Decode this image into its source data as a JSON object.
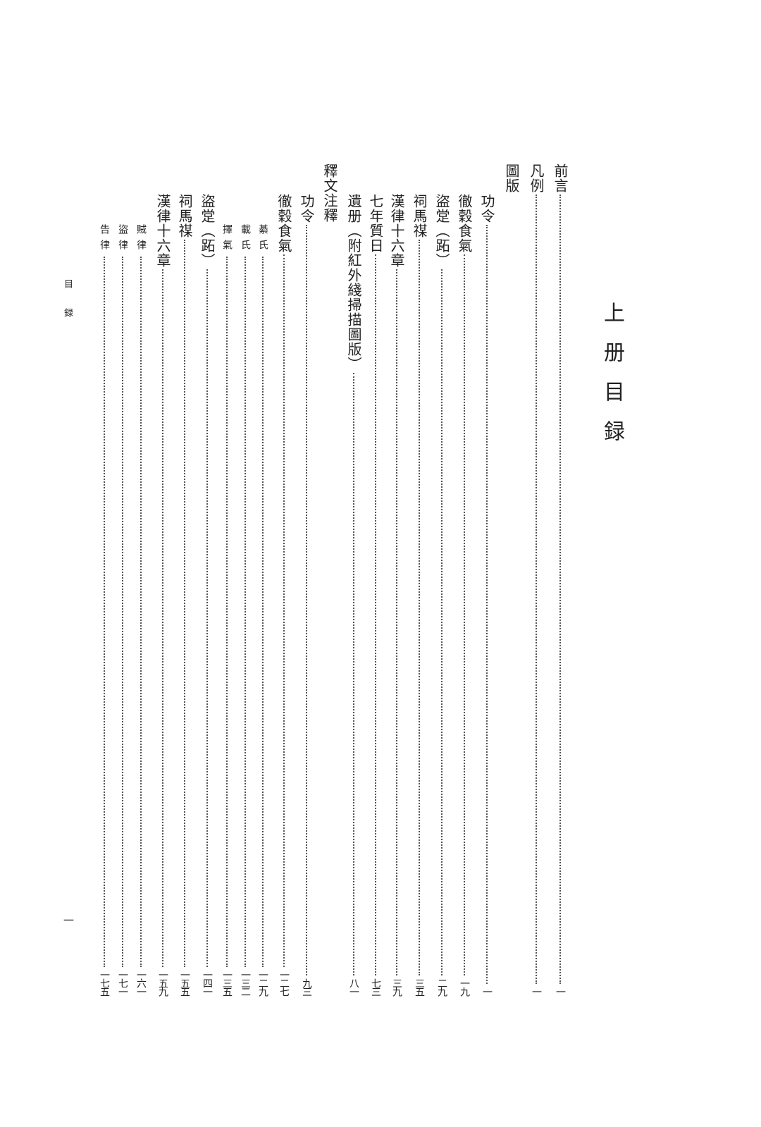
{
  "title": "上册目録",
  "running_header": "目録",
  "page_number": "一",
  "entries": [
    {
      "label": "前言",
      "page": "一",
      "level": 1
    },
    {
      "label": "凡例",
      "page": "一",
      "level": 1
    },
    {
      "label": "圖版",
      "page": "",
      "level": 1
    },
    {
      "label": "功令",
      "page": "一",
      "level": 2
    },
    {
      "label": "徹穀食氣",
      "page": "一九",
      "level": 2
    },
    {
      "label": "盜䟫（跖）",
      "page": "二九",
      "level": 2
    },
    {
      "label": "祠馬禖",
      "page": "三五",
      "level": 2
    },
    {
      "label": "漢律十六章",
      "page": "三九",
      "level": 2
    },
    {
      "label": "七年質日",
      "page": "七三",
      "level": 2
    },
    {
      "label": "遺册（附紅外綫掃描圖版）",
      "page": "八一",
      "level": 2
    },
    {
      "label": "釋文注釋",
      "page": "",
      "level": 1
    },
    {
      "label": "功令",
      "page": "九三",
      "level": 2
    },
    {
      "label": "徹穀食氣",
      "page": "一二七",
      "level": 2
    },
    {
      "label": "綦氏",
      "page": "一二九",
      "level": 3
    },
    {
      "label": "載氏",
      "page": "一三二",
      "level": 3
    },
    {
      "label": "擇氣",
      "page": "一三五",
      "level": 3
    },
    {
      "label": "盜䟫（跖）",
      "page": "一四一",
      "level": 2
    },
    {
      "label": "祠馬禖",
      "page": "一五五",
      "level": 2
    },
    {
      "label": "漢律十六章",
      "page": "一五九",
      "level": 2
    },
    {
      "label": "賊律",
      "page": "一六一",
      "level": 3
    },
    {
      "label": "盜律",
      "page": "一七一",
      "level": 3
    },
    {
      "label": "告律",
      "page": "一七五",
      "level": 3
    }
  ]
}
